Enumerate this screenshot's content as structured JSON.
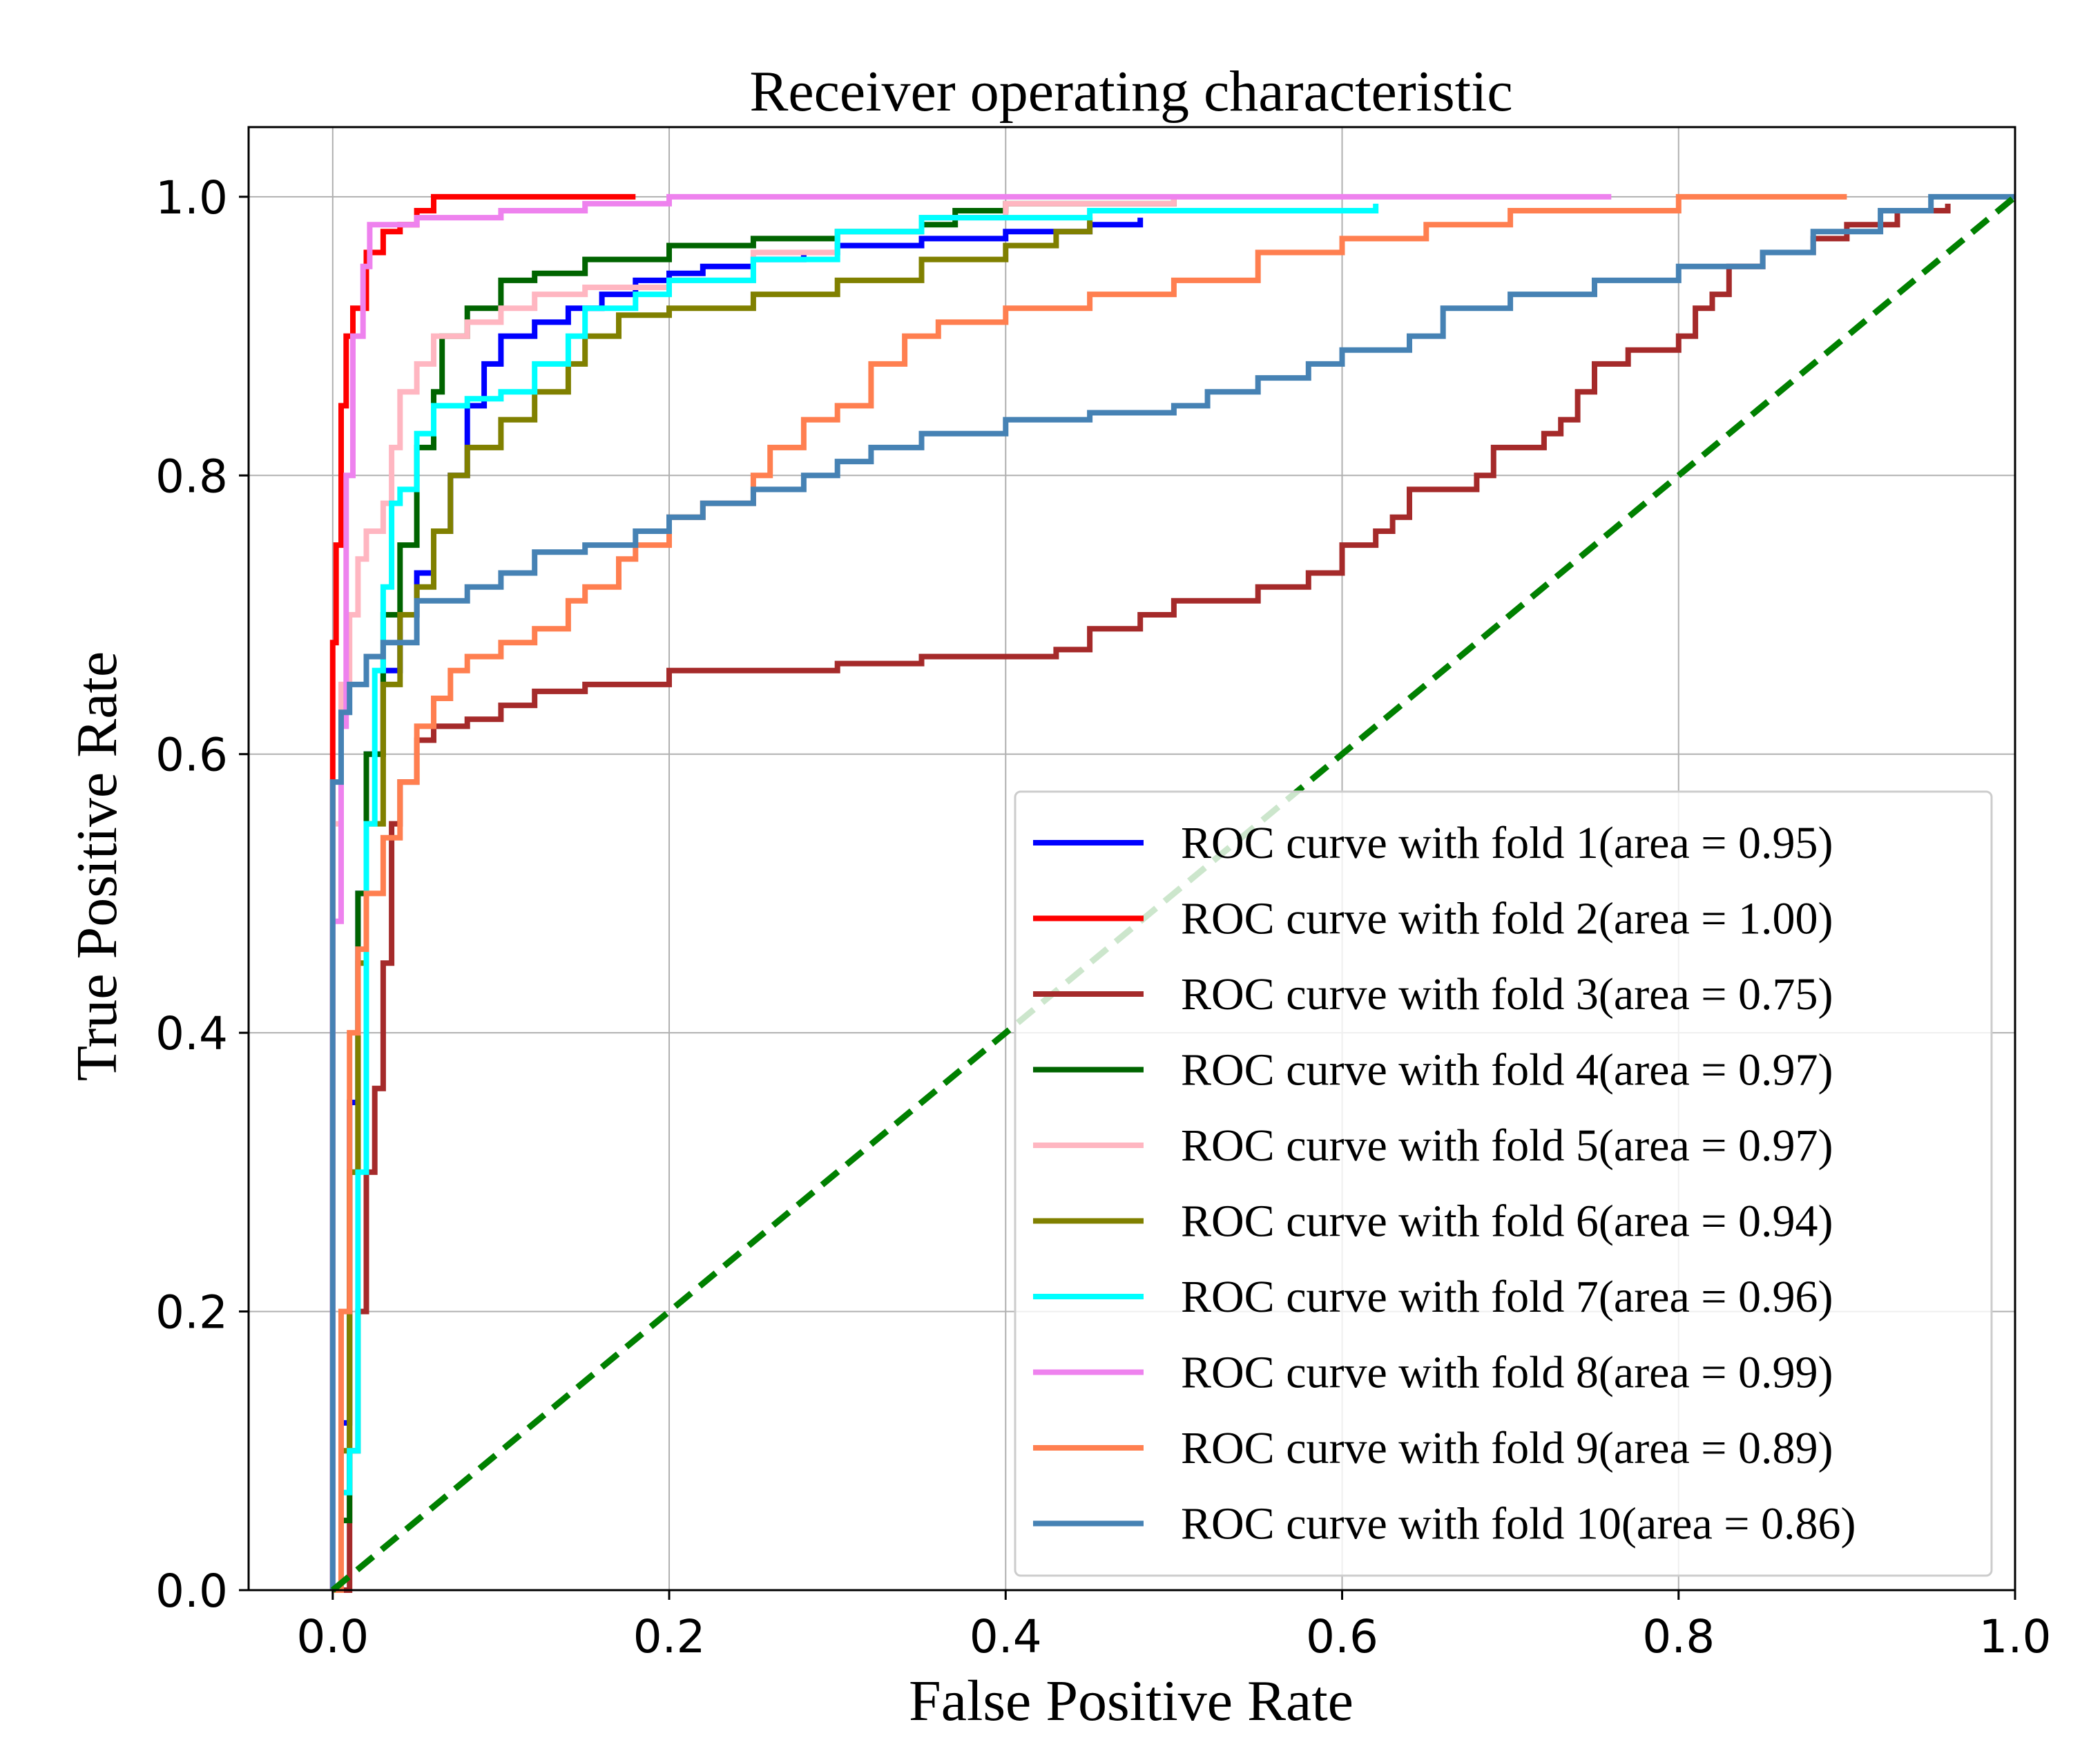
{
  "chart_data": {
    "type": "line",
    "title": "Receiver operating characteristic",
    "xlabel": "False Positive Rate",
    "ylabel": "True Positive Rate",
    "xlim": [
      -0.05,
      1.0
    ],
    "ylim": [
      0.0,
      1.05
    ],
    "xticks": [
      0.0,
      0.2,
      0.4,
      0.6,
      0.8,
      1.0
    ],
    "yticks": [
      0.0,
      0.2,
      0.4,
      0.6,
      0.8,
      1.0
    ],
    "xtick_labels": [
      "0.0",
      "0.2",
      "0.4",
      "0.6",
      "0.8",
      "1.0"
    ],
    "ytick_labels": [
      "0.0",
      "0.2",
      "0.4",
      "0.6",
      "0.8",
      "1.0"
    ],
    "grid": true,
    "legend_position": "lower-right",
    "series": [
      {
        "name": "ROC curve with fold 1(area = 0.95)",
        "color": "#0000ff",
        "points": [
          [
            0,
            0
          ],
          [
            0.005,
            0.12
          ],
          [
            0.01,
            0.35
          ],
          [
            0.015,
            0.5
          ],
          [
            0.02,
            0.6
          ],
          [
            0.03,
            0.66
          ],
          [
            0.04,
            0.7
          ],
          [
            0.05,
            0.73
          ],
          [
            0.06,
            0.76
          ],
          [
            0.07,
            0.8
          ],
          [
            0.08,
            0.85
          ],
          [
            0.09,
            0.88
          ],
          [
            0.1,
            0.9
          ],
          [
            0.12,
            0.91
          ],
          [
            0.14,
            0.92
          ],
          [
            0.16,
            0.93
          ],
          [
            0.18,
            0.94
          ],
          [
            0.2,
            0.945
          ],
          [
            0.22,
            0.95
          ],
          [
            0.25,
            0.955
          ],
          [
            0.28,
            0.96
          ],
          [
            0.3,
            0.965
          ],
          [
            0.35,
            0.97
          ],
          [
            0.4,
            0.975
          ],
          [
            0.45,
            0.98
          ],
          [
            0.48,
            0.985
          ]
        ]
      },
      {
        "name": "ROC curve with fold 2(area = 1.00)",
        "color": "#ff0000",
        "points": [
          [
            0,
            0
          ],
          [
            0,
            0.68
          ],
          [
            0.002,
            0.75
          ],
          [
            0.005,
            0.85
          ],
          [
            0.008,
            0.9
          ],
          [
            0.012,
            0.92
          ],
          [
            0.02,
            0.96
          ],
          [
            0.03,
            0.975
          ],
          [
            0.04,
            0.98
          ],
          [
            0.05,
            0.99
          ],
          [
            0.06,
            1.0
          ],
          [
            0.18,
            1.0
          ]
        ]
      },
      {
        "name": "ROC curve with fold 3(area = 0.75)",
        "color": "#a52a2a",
        "points": [
          [
            0,
            0
          ],
          [
            0.01,
            0.1
          ],
          [
            0.015,
            0.2
          ],
          [
            0.02,
            0.3
          ],
          [
            0.025,
            0.36
          ],
          [
            0.03,
            0.45
          ],
          [
            0.035,
            0.55
          ],
          [
            0.04,
            0.58
          ],
          [
            0.05,
            0.61
          ],
          [
            0.06,
            0.62
          ],
          [
            0.08,
            0.625
          ],
          [
            0.1,
            0.635
          ],
          [
            0.12,
            0.645
          ],
          [
            0.15,
            0.65
          ],
          [
            0.2,
            0.66
          ],
          [
            0.3,
            0.665
          ],
          [
            0.35,
            0.67
          ],
          [
            0.43,
            0.675
          ],
          [
            0.45,
            0.69
          ],
          [
            0.48,
            0.7
          ],
          [
            0.5,
            0.71
          ],
          [
            0.55,
            0.72
          ],
          [
            0.58,
            0.73
          ],
          [
            0.6,
            0.75
          ],
          [
            0.62,
            0.76
          ],
          [
            0.63,
            0.77
          ],
          [
            0.64,
            0.79
          ],
          [
            0.68,
            0.8
          ],
          [
            0.69,
            0.82
          ],
          [
            0.72,
            0.83
          ],
          [
            0.73,
            0.84
          ],
          [
            0.74,
            0.86
          ],
          [
            0.75,
            0.88
          ],
          [
            0.77,
            0.89
          ],
          [
            0.8,
            0.9
          ],
          [
            0.81,
            0.92
          ],
          [
            0.82,
            0.93
          ],
          [
            0.83,
            0.95
          ],
          [
            0.85,
            0.96
          ],
          [
            0.88,
            0.97
          ],
          [
            0.9,
            0.98
          ],
          [
            0.93,
            0.99
          ],
          [
            0.96,
            0.995
          ]
        ]
      },
      {
        "name": "ROC curve with fold 4(area = 0.97)",
        "color": "#006400",
        "points": [
          [
            0,
            0
          ],
          [
            0.005,
            0.05
          ],
          [
            0.01,
            0.3
          ],
          [
            0.015,
            0.5
          ],
          [
            0.02,
            0.6
          ],
          [
            0.03,
            0.7
          ],
          [
            0.04,
            0.75
          ],
          [
            0.05,
            0.82
          ],
          [
            0.06,
            0.86
          ],
          [
            0.065,
            0.9
          ],
          [
            0.08,
            0.92
          ],
          [
            0.1,
            0.94
          ],
          [
            0.12,
            0.945
          ],
          [
            0.15,
            0.955
          ],
          [
            0.2,
            0.965
          ],
          [
            0.25,
            0.97
          ],
          [
            0.3,
            0.975
          ],
          [
            0.35,
            0.98
          ],
          [
            0.37,
            0.99
          ],
          [
            0.4,
            0.995
          ],
          [
            0.5,
            1.0
          ]
        ]
      },
      {
        "name": "ROC curve with fold 5(area = 0.97)",
        "color": "#ffb6c1",
        "points": [
          [
            0,
            0
          ],
          [
            0,
            0.55
          ],
          [
            0.005,
            0.65
          ],
          [
            0.01,
            0.7
          ],
          [
            0.015,
            0.74
          ],
          [
            0.02,
            0.76
          ],
          [
            0.03,
            0.78
          ],
          [
            0.035,
            0.82
          ],
          [
            0.04,
            0.86
          ],
          [
            0.05,
            0.88
          ],
          [
            0.06,
            0.9
          ],
          [
            0.08,
            0.91
          ],
          [
            0.1,
            0.92
          ],
          [
            0.12,
            0.93
          ],
          [
            0.15,
            0.935
          ],
          [
            0.2,
            0.94
          ],
          [
            0.25,
            0.96
          ],
          [
            0.3,
            0.975
          ],
          [
            0.35,
            0.985
          ],
          [
            0.4,
            0.995
          ],
          [
            0.5,
            1.0
          ]
        ]
      },
      {
        "name": "ROC curve with fold 6(area = 0.94)",
        "color": "#808000",
        "points": [
          [
            0,
            0
          ],
          [
            0.005,
            0.1
          ],
          [
            0.01,
            0.3
          ],
          [
            0.015,
            0.45
          ],
          [
            0.02,
            0.55
          ],
          [
            0.03,
            0.65
          ],
          [
            0.04,
            0.7
          ],
          [
            0.05,
            0.72
          ],
          [
            0.06,
            0.76
          ],
          [
            0.07,
            0.8
          ],
          [
            0.08,
            0.82
          ],
          [
            0.1,
            0.84
          ],
          [
            0.12,
            0.86
          ],
          [
            0.14,
            0.88
          ],
          [
            0.15,
            0.9
          ],
          [
            0.17,
            0.915
          ],
          [
            0.2,
            0.92
          ],
          [
            0.25,
            0.93
          ],
          [
            0.3,
            0.94
          ],
          [
            0.35,
            0.955
          ],
          [
            0.4,
            0.965
          ],
          [
            0.43,
            0.975
          ],
          [
            0.45,
            0.985
          ]
        ]
      },
      {
        "name": "ROC curve with fold 7(area = 0.96)",
        "color": "#00ffff",
        "points": [
          [
            0,
            0
          ],
          [
            0.005,
            0.07
          ],
          [
            0.01,
            0.1
          ],
          [
            0.015,
            0.3
          ],
          [
            0.02,
            0.55
          ],
          [
            0.025,
            0.66
          ],
          [
            0.03,
            0.72
          ],
          [
            0.035,
            0.78
          ],
          [
            0.04,
            0.79
          ],
          [
            0.05,
            0.83
          ],
          [
            0.06,
            0.85
          ],
          [
            0.08,
            0.855
          ],
          [
            0.1,
            0.86
          ],
          [
            0.12,
            0.88
          ],
          [
            0.14,
            0.9
          ],
          [
            0.15,
            0.92
          ],
          [
            0.18,
            0.93
          ],
          [
            0.2,
            0.94
          ],
          [
            0.25,
            0.955
          ],
          [
            0.3,
            0.975
          ],
          [
            0.35,
            0.985
          ],
          [
            0.45,
            0.99
          ],
          [
            0.62,
            0.995
          ]
        ]
      },
      {
        "name": "ROC curve with fold 8(area = 0.99)",
        "color": "#ee82ee",
        "points": [
          [
            0,
            0
          ],
          [
            0,
            0.48
          ],
          [
            0.005,
            0.62
          ],
          [
            0.008,
            0.8
          ],
          [
            0.012,
            0.9
          ],
          [
            0.018,
            0.95
          ],
          [
            0.022,
            0.98
          ],
          [
            0.05,
            0.985
          ],
          [
            0.1,
            0.99
          ],
          [
            0.15,
            0.995
          ],
          [
            0.2,
            1.0
          ],
          [
            0.76,
            1.0
          ]
        ]
      },
      {
        "name": "ROC curve with fold 9(area = 0.89)",
        "color": "#ff7f50",
        "points": [
          [
            0,
            0
          ],
          [
            0.005,
            0.2
          ],
          [
            0.01,
            0.4
          ],
          [
            0.015,
            0.46
          ],
          [
            0.02,
            0.5
          ],
          [
            0.03,
            0.54
          ],
          [
            0.04,
            0.58
          ],
          [
            0.05,
            0.62
          ],
          [
            0.06,
            0.64
          ],
          [
            0.07,
            0.66
          ],
          [
            0.08,
            0.67
          ],
          [
            0.1,
            0.68
          ],
          [
            0.12,
            0.69
          ],
          [
            0.14,
            0.71
          ],
          [
            0.15,
            0.72
          ],
          [
            0.17,
            0.74
          ],
          [
            0.18,
            0.75
          ],
          [
            0.2,
            0.77
          ],
          [
            0.22,
            0.78
          ],
          [
            0.25,
            0.8
          ],
          [
            0.26,
            0.82
          ],
          [
            0.28,
            0.84
          ],
          [
            0.3,
            0.85
          ],
          [
            0.32,
            0.88
          ],
          [
            0.34,
            0.9
          ],
          [
            0.36,
            0.91
          ],
          [
            0.4,
            0.92
          ],
          [
            0.45,
            0.93
          ],
          [
            0.5,
            0.94
          ],
          [
            0.55,
            0.96
          ],
          [
            0.6,
            0.97
          ],
          [
            0.65,
            0.98
          ],
          [
            0.7,
            0.99
          ],
          [
            0.8,
            1.0
          ],
          [
            0.9,
            1.0
          ]
        ]
      },
      {
        "name": "ROC curve with fold 10(area = 0.86)",
        "color": "#4682b4",
        "points": [
          [
            0,
            0
          ],
          [
            0,
            0.58
          ],
          [
            0.005,
            0.63
          ],
          [
            0.01,
            0.65
          ],
          [
            0.02,
            0.67
          ],
          [
            0.03,
            0.68
          ],
          [
            0.05,
            0.71
          ],
          [
            0.08,
            0.72
          ],
          [
            0.1,
            0.73
          ],
          [
            0.12,
            0.745
          ],
          [
            0.15,
            0.75
          ],
          [
            0.18,
            0.76
          ],
          [
            0.2,
            0.77
          ],
          [
            0.22,
            0.78
          ],
          [
            0.25,
            0.79
          ],
          [
            0.28,
            0.8
          ],
          [
            0.3,
            0.81
          ],
          [
            0.32,
            0.82
          ],
          [
            0.35,
            0.83
          ],
          [
            0.4,
            0.84
          ],
          [
            0.45,
            0.845
          ],
          [
            0.5,
            0.85
          ],
          [
            0.52,
            0.86
          ],
          [
            0.55,
            0.87
          ],
          [
            0.58,
            0.88
          ],
          [
            0.6,
            0.89
          ],
          [
            0.64,
            0.9
          ],
          [
            0.66,
            0.92
          ],
          [
            0.7,
            0.93
          ],
          [
            0.75,
            0.94
          ],
          [
            0.8,
            0.95
          ],
          [
            0.85,
            0.96
          ],
          [
            0.88,
            0.975
          ],
          [
            0.92,
            0.99
          ],
          [
            0.95,
            1.0
          ],
          [
            1.0,
            1.0
          ]
        ]
      },
      {
        "name": "",
        "color": "#008000",
        "dashed": true,
        "points": [
          [
            0,
            0
          ],
          [
            1,
            1
          ]
        ]
      }
    ]
  }
}
